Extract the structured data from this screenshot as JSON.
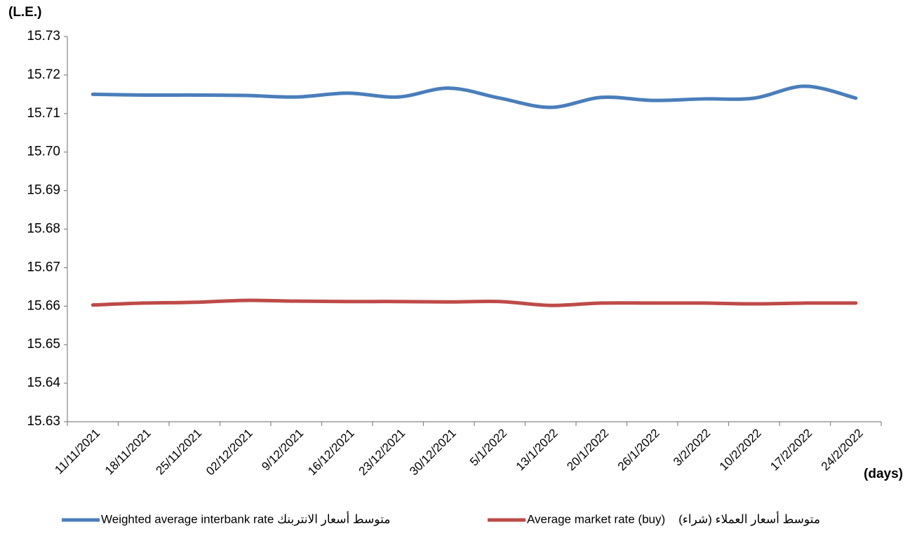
{
  "chart_data": {
    "type": "line",
    "y_label": "(L.E.)",
    "x_label": "(days)",
    "categories": [
      "11/11/2021",
      "18/11/2021",
      "25/11/2021",
      "02/12/2021",
      "9/12/2021",
      "16/12/2021",
      "23/12/2021",
      "30/12/2021",
      "5/1/2022",
      "13/1/2022",
      "20/1/2022",
      "26/1/2022",
      "3/2/2022",
      "10/2/2022",
      "17/2/2022",
      "24/2/2022"
    ],
    "series": [
      {
        "name": "Weighted average interbank rate متوسط أسعار الانتربنك",
        "color": "#4a7ebb",
        "values": [
          15.715,
          15.7148,
          15.7148,
          15.7147,
          15.7143,
          15.7153,
          15.7143,
          15.7166,
          15.714,
          15.7116,
          15.7142,
          15.7134,
          15.7138,
          15.714,
          15.7171,
          15.714
        ]
      },
      {
        "name": "Average market rate (buy)    متوسط أسعار العملاء (شراء)",
        "color": "#be4b48",
        "values": [
          15.6603,
          15.6608,
          15.661,
          15.6615,
          15.6613,
          15.6612,
          15.6612,
          15.6611,
          15.6612,
          15.6602,
          15.6608,
          15.6608,
          15.6608,
          15.6606,
          15.6608,
          15.6608
        ]
      }
    ],
    "ylim": [
      15.63,
      15.73
    ],
    "yticks": [
      15.63,
      15.64,
      15.65,
      15.66,
      15.67,
      15.68,
      15.69,
      {
        "value": 15.7,
        "label": "15.70"
      },
      15.71,
      15.72,
      15.73
    ],
    "grid": false,
    "legend": "bottom"
  }
}
